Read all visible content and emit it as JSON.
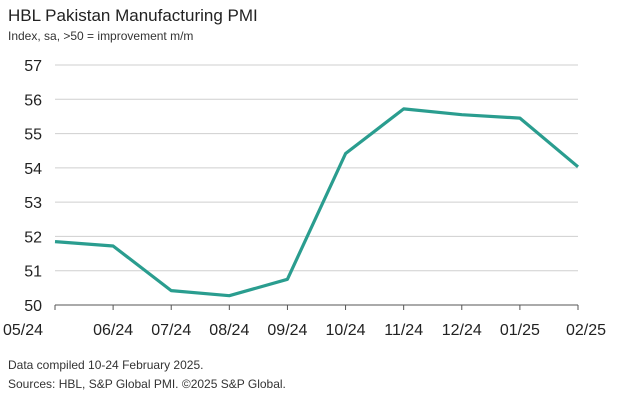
{
  "chart_data": {
    "type": "line",
    "title": "HBL Pakistan Manufacturing PMI",
    "subtitle": "Index, sa, >50 = improvement m/m",
    "categories": [
      "05/24",
      "06/24",
      "07/24",
      "08/24",
      "09/24",
      "10/24",
      "11/24",
      "12/24",
      "01/25",
      "02/25"
    ],
    "series": [
      {
        "values": [
          51.85,
          51.72,
          50.42,
          50.27,
          50.75,
          54.42,
          55.72,
          55.55,
          55.45,
          54.03
        ]
      }
    ],
    "xlabel": "",
    "ylabel": "",
    "ylim": [
      50,
      57
    ],
    "yticks": [
      50,
      51,
      52,
      53,
      54,
      55,
      56,
      57
    ],
    "grid": "horizontal",
    "legend": "none",
    "line_color": "#2a9d8f",
    "grid_color": "#cfcfcf",
    "axis_color": "#555555"
  },
  "footnotes": {
    "compiled": "Data compiled 10-24 February 2025.",
    "sources": "Sources: HBL, S&P Global PMI. ©2025 S&P Global."
  }
}
